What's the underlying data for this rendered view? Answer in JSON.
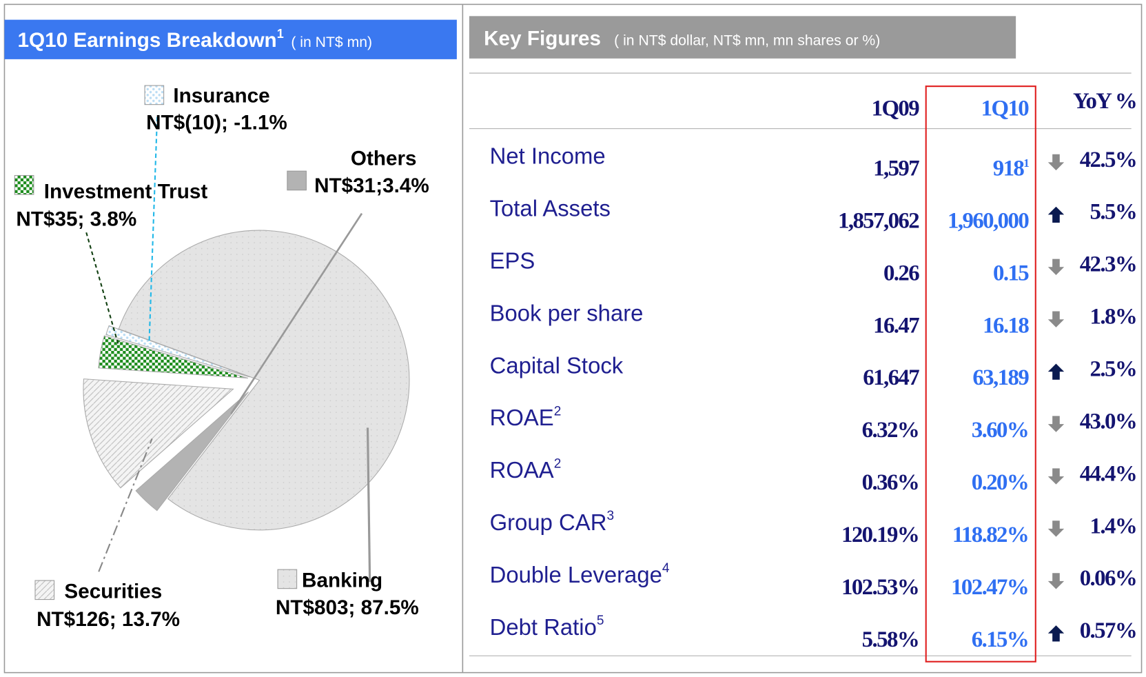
{
  "left_panel": {
    "title": "1Q10 Earnings Breakdown",
    "title_sup": "1",
    "title_note": "( in NT$ mn)"
  },
  "chart_data": {
    "type": "pie",
    "labels": [
      "Banking",
      "Others",
      "Securities",
      "Investment Trust",
      "Insurance"
    ],
    "values": [
      803,
      31,
      126,
      35,
      -10
    ],
    "value_labels": [
      "NT$803; 87.5%",
      "NT$31;3.4%",
      "NT$126; 13.7%",
      "NT$35; 3.8%",
      "NT$(10); -1.1%"
    ],
    "colors": [
      "#e4e4e4",
      "#b3b3b3",
      "#f4f4f4",
      "#1c8c1c",
      "#b9dcf4"
    ]
  },
  "key_figures": {
    "title": "Key Figures",
    "title_note": "( in NT$ dollar, NT$ mn, mn shares or %)",
    "columns": [
      "1Q09",
      "1Q10",
      "YoY  %"
    ],
    "rows": [
      {
        "label": "Net Income",
        "q1_09": "1,597",
        "q1_10": "918",
        "q1_10_sup": "1",
        "trend": "down",
        "yoy": "42.5%"
      },
      {
        "label": "Total Assets",
        "q1_09": "1,857,062",
        "q1_10": "1,960,000",
        "trend": "up",
        "yoy": "5.5%"
      },
      {
        "label": "EPS",
        "q1_09": "0.26",
        "q1_10": "0.15",
        "trend": "down",
        "yoy": "42.3%"
      },
      {
        "label": "Book per share",
        "q1_09": "16.47",
        "q1_10": "16.18",
        "trend": "down",
        "yoy": "1.8%"
      },
      {
        "label": "Capital Stock",
        "q1_09": "61,647",
        "q1_10": "63,189",
        "trend": "up",
        "yoy": "2.5%"
      },
      {
        "label": "ROAE",
        "label_sup": "2",
        "q1_09": "6.32%",
        "q1_10": "3.60%",
        "trend": "down",
        "yoy": "43.0%"
      },
      {
        "label": "ROAA",
        "label_sup": "2",
        "q1_09": "0.36%",
        "q1_10": "0.20%",
        "trend": "down",
        "yoy": "44.4%"
      },
      {
        "label": "Group CAR",
        "label_sup": "3",
        "q1_09": "120.19%",
        "q1_10": "118.82%",
        "trend": "down",
        "yoy": "1.4%"
      },
      {
        "label": "Double Leverage",
        "label_sup": "4",
        "q1_09": "102.53%",
        "q1_10": "102.47%",
        "trend": "down",
        "yoy": "0.06%"
      },
      {
        "label": "Debt Ratio",
        "label_sup": "5",
        "q1_09": "5.58%",
        "q1_10": "6.15%",
        "trend": "up",
        "yoy": "0.57%"
      }
    ]
  }
}
